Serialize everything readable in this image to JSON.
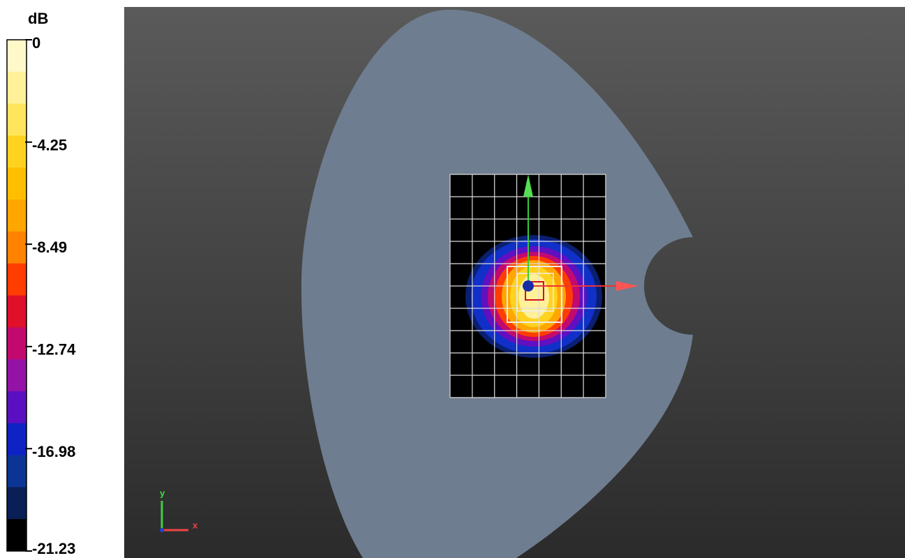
{
  "colorbar": {
    "unit": "dB",
    "ticks": [
      0,
      -4.25,
      -8.49,
      -12.74,
      -16.98,
      -21.23
    ],
    "colors": [
      "#fff9c9",
      "#fff09a",
      "#ffe55c",
      "#ffd21f",
      "#ffbf00",
      "#ffa600",
      "#ff8200",
      "#ff3d00",
      "#e0102a",
      "#c20a6e",
      "#9512a6",
      "#5a10c0",
      "#0f22c4",
      "#0b3494",
      "#0a1f55",
      "#000000"
    ]
  },
  "axes_triad": {
    "y": "y",
    "x": "x"
  }
}
